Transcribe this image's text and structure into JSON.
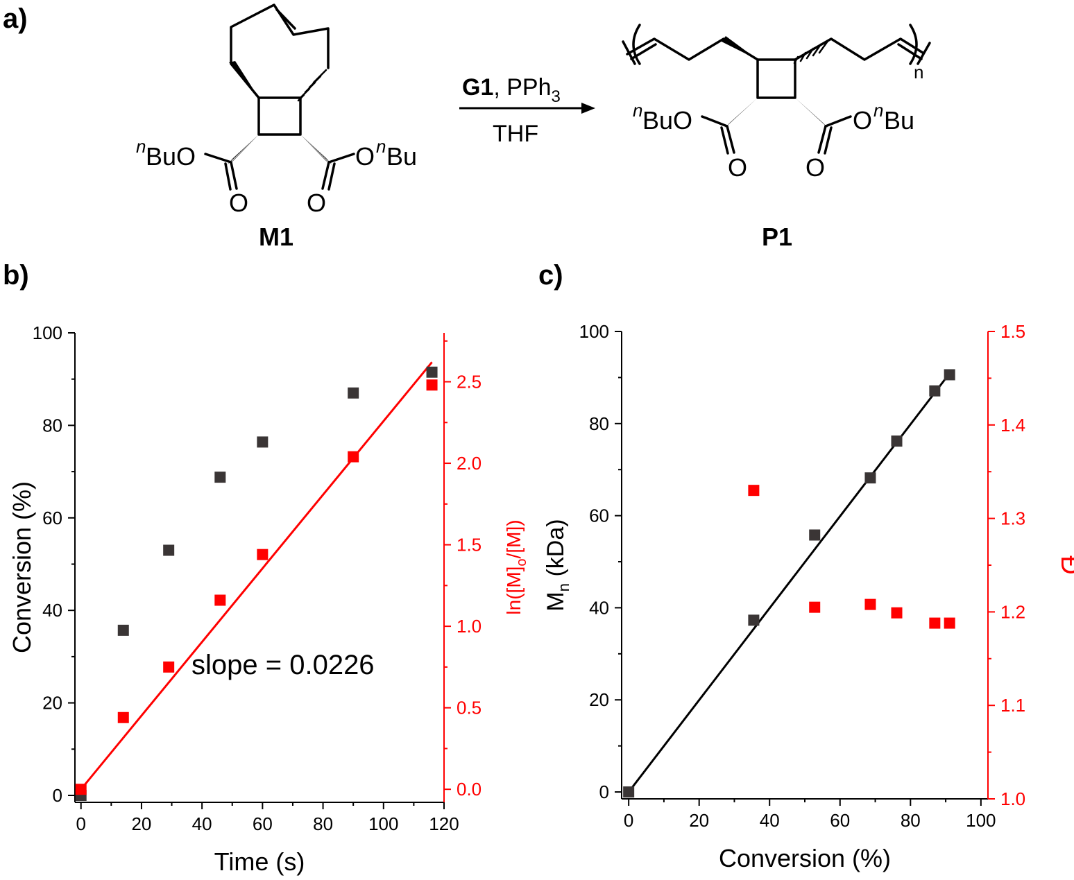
{
  "panel_labels": {
    "a": "a)",
    "b": "b)",
    "c": "c)"
  },
  "scheme": {
    "monomer": {
      "label": "M1",
      "ester_left": "BuO",
      "ester_right": "O",
      "ester_right_bu": "Bu",
      "n_prefix": "n",
      "oxygen": "O"
    },
    "polymer": {
      "label": "P1",
      "ester_left": "BuO",
      "ester_right": "O",
      "ester_right_bu": "Bu",
      "n_prefix": "n",
      "oxygen": "O",
      "repeat": "n"
    },
    "reagents_top_bold": "G1",
    "reagents_top_rest": ", PPh",
    "reagents_top_sub": "3",
    "reagents_bottom": "THF"
  },
  "colors": {
    "black_series": "#3a3535",
    "red_series": "#ff0000",
    "axis_black": "#000000",
    "axis_red": "#ff0000"
  },
  "chart_data": [
    {
      "panel": "b",
      "type": "scatter",
      "xlabel": "Time (s)",
      "xlim": [
        -2,
        120
      ],
      "x_ticks": [
        0,
        20,
        40,
        60,
        80,
        100,
        120
      ],
      "left_axis": {
        "label": "Conversion (%)",
        "lim": [
          -1.5,
          100
        ],
        "ticks": [
          0,
          20,
          40,
          60,
          80,
          100
        ],
        "color": "#000000"
      },
      "right_axis": {
        "label_parts": [
          "ln([M]",
          "o",
          "/[M])"
        ],
        "lim": [
          -0.08,
          2.8
        ],
        "ticks": [
          0.0,
          0.5,
          1.0,
          1.5,
          2.0,
          2.5
        ],
        "tick_labels": [
          "0.0",
          "0.5",
          "1.0",
          "1.5",
          "2.0",
          "2.5"
        ],
        "color": "#ff0000"
      },
      "series": [
        {
          "axis": "left",
          "color": "#3a3535",
          "x": [
            0,
            14,
            29,
            46,
            60,
            90,
            116
          ],
          "y": [
            0,
            35.7,
            53,
            68.8,
            76.4,
            87,
            91.5
          ]
        },
        {
          "axis": "right",
          "color": "#ff0000",
          "x": [
            0,
            14,
            29,
            46,
            60,
            90,
            116
          ],
          "y": [
            0,
            0.44,
            0.75,
            1.16,
            1.44,
            2.04,
            2.48
          ]
        }
      ],
      "fit_line": {
        "axis": "right",
        "color": "#ff0000",
        "x": [
          0,
          116
        ],
        "y": [
          0,
          2.62
        ]
      },
      "annotation": "slope = 0.0226"
    },
    {
      "panel": "c",
      "type": "scatter",
      "xlabel": "Conversion (%)",
      "xlim": [
        -2,
        102
      ],
      "x_ticks": [
        0,
        20,
        40,
        60,
        80,
        100
      ],
      "left_axis": {
        "label_parts": [
          "M",
          "n",
          " (kDa)"
        ],
        "lim": [
          -1.5,
          100
        ],
        "ticks": [
          0,
          20,
          40,
          60,
          80,
          100
        ],
        "color": "#000000"
      },
      "right_axis": {
        "label": "Đ",
        "lim": [
          1.0,
          1.5
        ],
        "ticks": [
          1.0,
          1.1,
          1.2,
          1.3,
          1.4,
          1.5
        ],
        "tick_labels": [
          "1.0",
          "1.1",
          "1.2",
          "1.3",
          "1.4",
          "1.5"
        ],
        "color": "#ff0000"
      },
      "series": [
        {
          "axis": "left",
          "color": "#3a3535",
          "x": [
            0,
            35.5,
            52.8,
            68.6,
            76.1,
            86.9,
            91.1
          ],
          "y": [
            0,
            37.3,
            55.8,
            68.2,
            76.2,
            87.1,
            90.6
          ]
        },
        {
          "axis": "right",
          "color": "#ff0000",
          "x": [
            35.5,
            52.8,
            68.6,
            76.1,
            86.9,
            91.1
          ],
          "y": [
            1.33,
            1.205,
            1.208,
            1.199,
            1.188,
            1.188
          ]
        }
      ],
      "fit_line": {
        "axis": "left",
        "color": "#000000",
        "x": [
          0,
          91.5
        ],
        "y": [
          0,
          91.3
        ]
      }
    }
  ]
}
